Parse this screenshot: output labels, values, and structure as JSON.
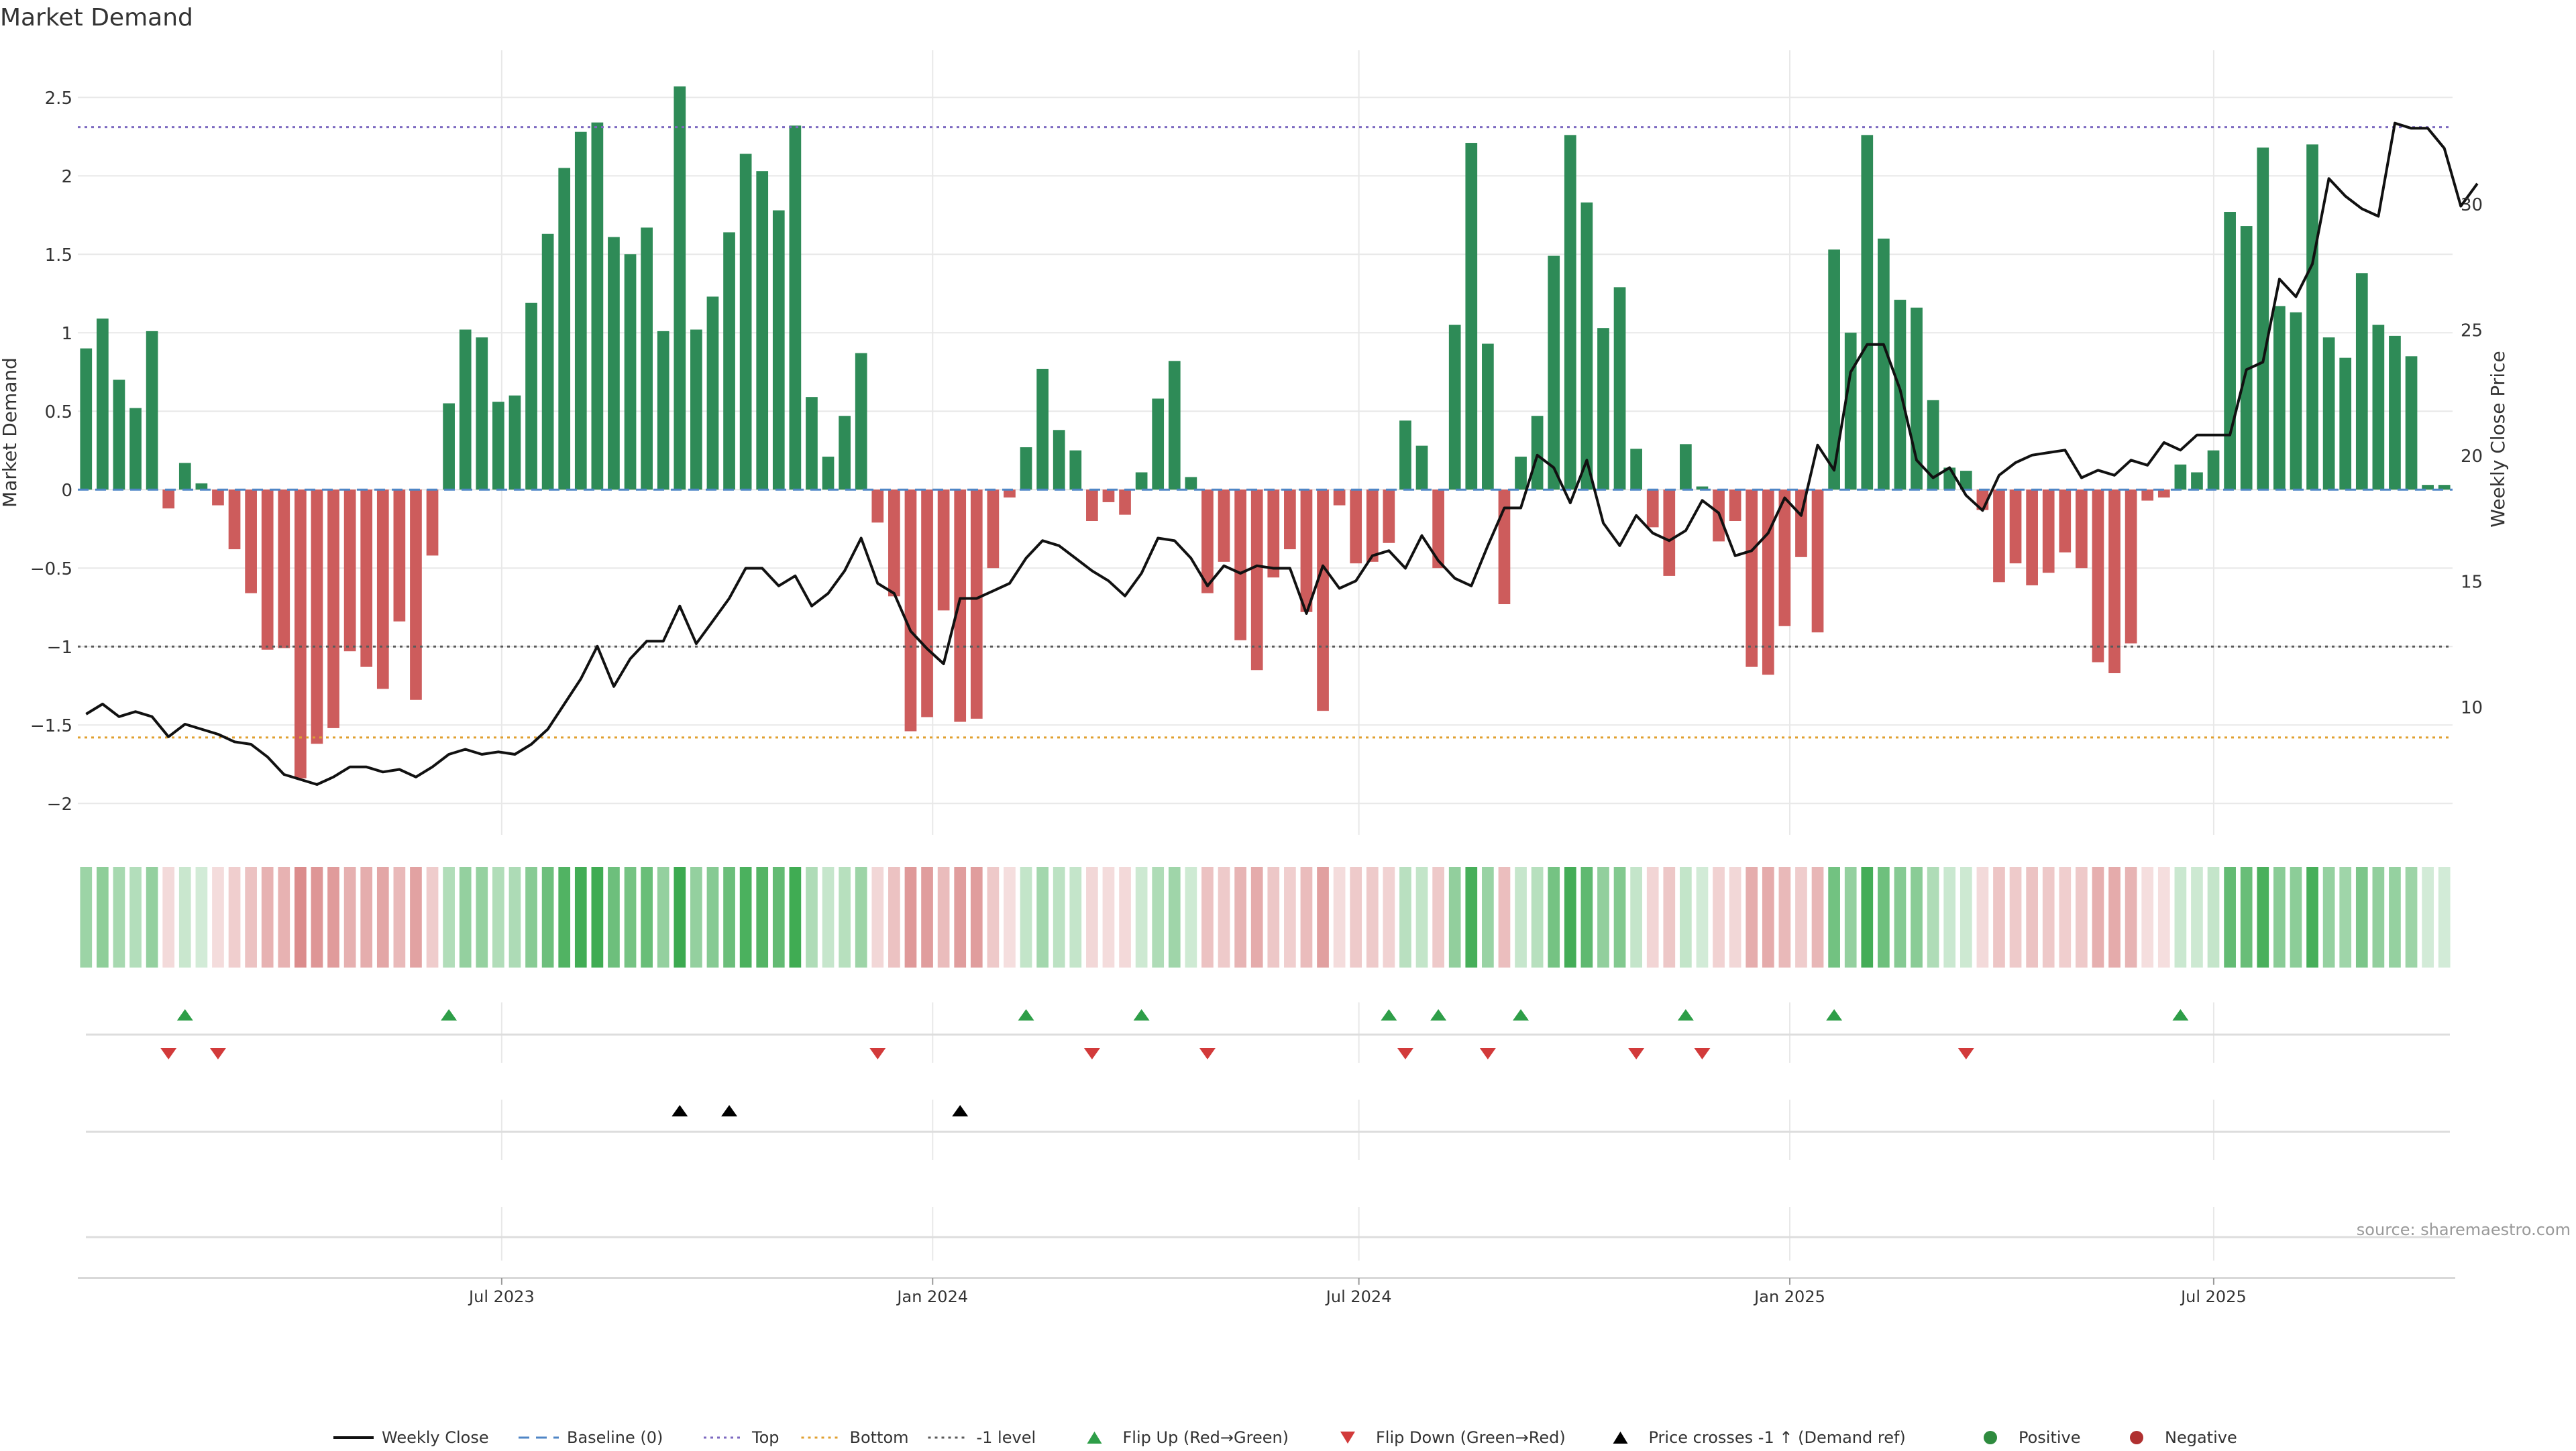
{
  "chart_data": {
    "type": "bar",
    "title": "Market Demand",
    "ylabel": "Market Demand",
    "y2label": "Weekly Close Price",
    "ylim": [
      -2.2,
      2.8
    ],
    "y2lim": [
      4.9,
      36.1
    ],
    "yticks": [
      2.5,
      2,
      1.5,
      1,
      0.5,
      0,
      -0.5,
      -1,
      -1.5,
      -2
    ],
    "ytick_labels": [
      "2.5",
      "2",
      "1.5",
      "1",
      "0.5",
      "0",
      "−0.5",
      "−1",
      "−1.5",
      "−2"
    ],
    "y2ticks": [
      10,
      15,
      20,
      25,
      30
    ],
    "y2tick_labels": [
      "10",
      "15",
      "20",
      "25",
      "30"
    ],
    "start_date": "2023-01-01",
    "end_date": "2025-10-11",
    "xticks": [
      "2023-07-01",
      "2024-01-01",
      "2024-07-01",
      "2025-01-01",
      "2025-07-01"
    ],
    "xtick_labels": [
      "Jul 2023",
      "Jan 2024",
      "Jul 2024",
      "Jan 2025",
      "Jul 2025"
    ],
    "levels": {
      "top": 2.31,
      "bottom": -1.58,
      "minus_one": -1.0,
      "baseline": 0
    },
    "demand": [
      0.9,
      1.09,
      0.7,
      0.52,
      1.01,
      -0.12,
      0.17,
      0.04,
      -0.1,
      -0.38,
      -0.66,
      -1.02,
      -1.01,
      -1.84,
      -1.62,
      -1.52,
      -1.03,
      -1.13,
      -1.27,
      -0.84,
      -1.34,
      -0.42,
      0.55,
      1.02,
      0.97,
      0.56,
      0.6,
      1.19,
      1.63,
      2.05,
      2.28,
      2.34,
      1.61,
      1.5,
      1.67,
      1.01,
      2.57,
      1.02,
      1.23,
      1.64,
      2.14,
      2.03,
      1.78,
      2.32,
      0.59,
      0.21,
      0.47,
      0.87,
      -0.21,
      -0.68,
      -1.54,
      -1.45,
      -0.77,
      -1.48,
      -1.46,
      -0.5,
      -0.05,
      0.27,
      0.77,
      0.38,
      0.25,
      -0.2,
      -0.08,
      -0.16,
      0.11,
      0.58,
      0.82,
      0.08,
      -0.66,
      -0.46,
      -0.96,
      -1.15,
      -0.56,
      -0.38,
      -0.78,
      -1.41,
      -0.1,
      -0.47,
      -0.46,
      -0.34,
      0.44,
      0.28,
      -0.5,
      1.05,
      2.21,
      0.93,
      -0.73,
      0.21,
      0.47,
      1.49,
      2.26,
      1.83,
      1.03,
      1.29,
      0.26,
      -0.24,
      -0.55,
      0.29,
      0.02,
      -0.33,
      -0.2,
      -1.13,
      -1.18,
      -0.87,
      -0.43,
      -0.91,
      1.53,
      1.0,
      2.26,
      1.6,
      1.21,
      1.16,
      0.57,
      0.14,
      0.12,
      -0.13,
      -0.59,
      -0.47,
      -0.61,
      -0.53,
      -0.4,
      -0.5,
      -1.1,
      -1.17,
      -0.98,
      -0.07,
      -0.05,
      0.16,
      0.11,
      0.25,
      1.77,
      1.68,
      2.18,
      1.17,
      1.13,
      2.2,
      0.97,
      0.84,
      1.38,
      1.05,
      0.98,
      0.85,
      0.03,
      0.03
    ],
    "weekly_close": [
      9.7,
      10.1,
      9.6,
      9.8,
      9.6,
      8.8,
      9.3,
      9.1,
      8.9,
      8.6,
      8.5,
      8.0,
      7.3,
      7.1,
      6.9,
      7.2,
      7.6,
      7.6,
      7.4,
      7.5,
      7.2,
      7.6,
      8.1,
      8.3,
      8.1,
      8.2,
      8.1,
      8.5,
      9.1,
      10.1,
      11.1,
      12.4,
      10.8,
      11.9,
      12.6,
      12.6,
      14.0,
      12.5,
      13.4,
      14.3,
      15.5,
      15.5,
      14.8,
      15.2,
      14.0,
      14.5,
      15.4,
      16.7,
      14.9,
      14.5,
      13.0,
      12.3,
      11.7,
      14.3,
      14.3,
      14.6,
      14.9,
      15.9,
      16.6,
      16.4,
      15.9,
      15.4,
      15.0,
      14.4,
      15.3,
      16.7,
      16.6,
      15.9,
      14.8,
      15.6,
      15.3,
      15.6,
      15.5,
      15.5,
      13.7,
      15.6,
      14.7,
      15.0,
      16.0,
      16.2,
      15.5,
      16.8,
      15.8,
      15.1,
      14.8,
      16.4,
      17.9,
      17.9,
      20.0,
      19.5,
      18.1,
      19.8,
      17.3,
      16.4,
      17.6,
      16.9,
      16.6,
      17.0,
      18.2,
      17.7,
      16.0,
      16.2,
      16.9,
      18.3,
      17.6,
      20.4,
      19.4,
      23.3,
      24.4,
      24.4,
      22.6,
      19.8,
      19.1,
      19.5,
      18.4,
      17.8,
      19.2,
      19.7,
      20.0,
      20.1,
      20.2,
      19.1,
      19.4,
      19.2,
      19.8,
      19.6,
      20.5,
      20.2,
      20.8,
      20.8,
      20.8,
      23.4,
      23.7,
      27.0,
      26.3,
      27.6,
      31.0,
      30.3,
      29.8,
      29.5,
      33.2,
      33.0,
      33.0,
      32.2,
      29.9,
      30.8
    ],
    "flip_up_weeks": [
      6,
      22,
      57,
      64,
      79,
      82,
      87,
      97,
      106,
      127
    ],
    "flip_down_weeks": [
      5,
      8,
      48,
      61,
      68,
      80,
      85,
      94,
      98,
      114
    ],
    "cross_weeks": [
      36,
      39,
      53
    ],
    "legend": [
      {
        "kind": "line",
        "label": "Weekly Close",
        "color": "#111111"
      },
      {
        "kind": "dash",
        "label": "Baseline (0)",
        "color": "#4f86c6"
      },
      {
        "kind": "dot",
        "label": "Top",
        "color": "#7d6ac0"
      },
      {
        "kind": "dot",
        "label": "Bottom",
        "color": "#e0a030"
      },
      {
        "kind": "dot",
        "label": "-1 level",
        "color": "#5a5a5a"
      },
      {
        "kind": "tri-up",
        "label": "Flip Up (Red→Green)",
        "color": "#2e9e48"
      },
      {
        "kind": "tri-down",
        "label": "Flip Down (Green→Red)",
        "color": "#d23a3a"
      },
      {
        "kind": "tri-up",
        "label": "Price crosses -1 ↑ (Demand ref)",
        "color": "#000000"
      },
      {
        "kind": "circle",
        "label": "Positive",
        "color": "#2e8b3e"
      },
      {
        "kind": "circle",
        "label": "Negative",
        "color": "#b03030"
      }
    ],
    "source": "source: sharemaestro.com"
  },
  "colors": {
    "positive_bar": "#2e8b57",
    "negative_bar": "#cd5c5c",
    "price_line": "#111111",
    "grid": "#e8e8e8",
    "axis_text": "#333333"
  }
}
